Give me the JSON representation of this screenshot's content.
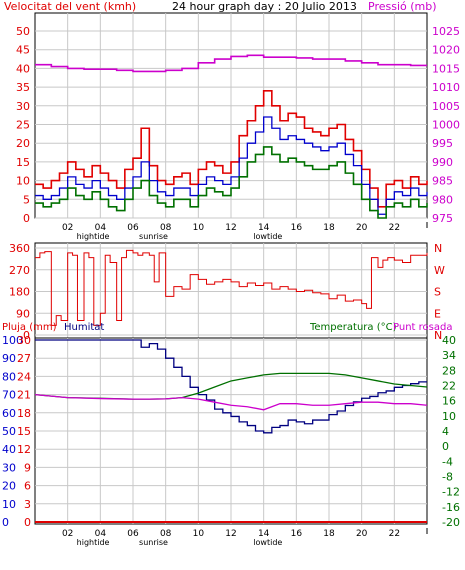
{
  "colors": {
    "red": "#e00000",
    "magenta": "#cc00cc",
    "green": "#007000",
    "blue": "#0000cc",
    "darkblue": "#000080",
    "grid": "#c8c8c8",
    "frame": "#000000"
  },
  "header": {
    "wind_label": "Velocitat del vent (kmh)",
    "title": "24 hour graph day : 20 Julio 2013",
    "pressure_label": "Pressió (mb)"
  },
  "time_axis": {
    "ticks": [
      "02",
      "04",
      "06",
      "08",
      "10",
      "12",
      "14",
      "16",
      "18",
      "20",
      "22"
    ],
    "annotations": [
      "hightide",
      "sunrise",
      "lowtide"
    ]
  },
  "panel_bottom": {
    "rain_label": "Pluja (mm)",
    "humidity_label": "Humitat",
    "temp_label": "Temperatura (°C)",
    "dew_label": "Punt rosada"
  },
  "chart_data": [
    {
      "type": "line",
      "panel": "wind-pressure",
      "x_unit": "hour",
      "x_range": [
        0,
        24
      ],
      "left_axis": {
        "ticks": [
          0,
          5,
          10,
          15,
          20,
          25,
          30,
          35,
          40,
          45,
          50
        ],
        "range": [
          0,
          50
        ]
      },
      "right_axis": {
        "ticks": [
          975,
          980,
          985,
          990,
          995,
          1000,
          1005,
          1010,
          1015,
          1020,
          1025
        ],
        "range": [
          975,
          1025
        ]
      },
      "series": [
        {
          "key": "gust",
          "color": "red",
          "axis": "left",
          "x": [
            0,
            0.5,
            1,
            1.5,
            2,
            2.5,
            3,
            3.5,
            4,
            4.5,
            5,
            5.5,
            6,
            6.5,
            7,
            7.5,
            8,
            8.5,
            9,
            9.5,
            10,
            10.5,
            11,
            11.5,
            12,
            12.5,
            13,
            13.5,
            14,
            14.5,
            15,
            15.5,
            16,
            16.5,
            17,
            17.5,
            18,
            18.5,
            19,
            19.5,
            20,
            20.5,
            21,
            21.5,
            22,
            22.5,
            23,
            23.5,
            24
          ],
          "values": [
            9,
            8,
            10,
            12,
            15,
            13,
            11,
            14,
            12,
            10,
            8,
            13,
            16,
            24,
            14,
            10,
            9,
            11,
            12,
            9,
            13,
            15,
            14,
            12,
            15,
            22,
            26,
            30,
            34,
            30,
            26,
            28,
            27,
            24,
            23,
            22,
            24,
            25,
            21,
            18,
            13,
            8,
            3,
            9,
            10,
            8,
            11,
            9,
            10
          ]
        },
        {
          "key": "avg",
          "color": "blue",
          "axis": "left",
          "x": [
            0,
            0.5,
            1,
            1.5,
            2,
            2.5,
            3,
            3.5,
            4,
            4.5,
            5,
            5.5,
            6,
            6.5,
            7,
            7.5,
            8,
            8.5,
            9,
            9.5,
            10,
            10.5,
            11,
            11.5,
            12,
            12.5,
            13,
            13.5,
            14,
            14.5,
            15,
            15.5,
            16,
            16.5,
            17,
            17.5,
            18,
            18.5,
            19,
            19.5,
            20,
            20.5,
            21,
            21.5,
            22,
            22.5,
            23,
            23.5,
            24
          ],
          "values": [
            6,
            5,
            6,
            8,
            11,
            9,
            8,
            10,
            8,
            6,
            5,
            8,
            11,
            15,
            10,
            7,
            6,
            8,
            8,
            6,
            9,
            11,
            10,
            9,
            11,
            16,
            20,
            23,
            27,
            24,
            21,
            22,
            21,
            20,
            19,
            18,
            19,
            20,
            17,
            14,
            9,
            5,
            1,
            5,
            7,
            6,
            8,
            6,
            7
          ]
        },
        {
          "key": "wind",
          "color": "green",
          "axis": "left",
          "x": [
            0,
            0.5,
            1,
            1.5,
            2,
            2.5,
            3,
            3.5,
            4,
            4.5,
            5,
            5.5,
            6,
            6.5,
            7,
            7.5,
            8,
            8.5,
            9,
            9.5,
            10,
            10.5,
            11,
            11.5,
            12,
            12.5,
            13,
            13.5,
            14,
            14.5,
            15,
            15.5,
            16,
            16.5,
            17,
            17.5,
            18,
            18.5,
            19,
            19.5,
            20,
            20.5,
            21,
            21.5,
            22,
            22.5,
            23,
            23.5,
            24
          ],
          "values": [
            4,
            3,
            4,
            5,
            8,
            6,
            5,
            7,
            5,
            3,
            2,
            5,
            8,
            10,
            6,
            4,
            3,
            5,
            5,
            3,
            6,
            8,
            7,
            6,
            8,
            11,
            15,
            17,
            19,
            17,
            15,
            16,
            15,
            14,
            13,
            13,
            14,
            15,
            12,
            9,
            5,
            2,
            0,
            3,
            4,
            3,
            5,
            3,
            4
          ]
        },
        {
          "key": "pressure",
          "color": "magenta",
          "axis": "right",
          "x": [
            0,
            1,
            2,
            3,
            4,
            5,
            6,
            7,
            8,
            9,
            10,
            11,
            12,
            13,
            14,
            15,
            16,
            17,
            18,
            19,
            20,
            21,
            22,
            23,
            24
          ],
          "values": [
            1016,
            1015.5,
            1015,
            1014.8,
            1014.8,
            1014.5,
            1014.2,
            1014.2,
            1014.5,
            1015,
            1016.5,
            1017.5,
            1018.2,
            1018.5,
            1018,
            1018,
            1017.8,
            1017.5,
            1017.5,
            1017,
            1016.5,
            1016,
            1016,
            1015.8,
            1015.8
          ]
        }
      ]
    },
    {
      "type": "line",
      "panel": "wind-direction",
      "x_unit": "hour",
      "x_range": [
        0,
        24
      ],
      "left_axis": {
        "ticks": [
          0,
          90,
          180,
          270,
          360
        ],
        "range": [
          0,
          360
        ]
      },
      "right_axis": {
        "labels": [
          "N",
          "W",
          "S",
          "E",
          "N"
        ]
      },
      "series": [
        {
          "key": "direction",
          "color": "red",
          "x": [
            0,
            0.3,
            0.6,
            1,
            1.3,
            1.6,
            2,
            2.3,
            2.6,
            3,
            3.3,
            3.6,
            4,
            4.3,
            4.6,
            5,
            5.3,
            5.6,
            6,
            6.3,
            6.6,
            7,
            7.3,
            7.6,
            8,
            8.5,
            9,
            9.5,
            10,
            10.5,
            11,
            11.5,
            12,
            12.5,
            13,
            13.5,
            14,
            14.5,
            15,
            15.5,
            16,
            16.5,
            17,
            17.5,
            18,
            18.5,
            19,
            19.5,
            20,
            20.3,
            20.6,
            21,
            21.3,
            21.6,
            22,
            22.5,
            23,
            23.5,
            24
          ],
          "values": [
            320,
            340,
            345,
            40,
            80,
            60,
            340,
            330,
            60,
            340,
            320,
            40,
            90,
            330,
            300,
            60,
            320,
            350,
            340,
            330,
            340,
            330,
            220,
            340,
            160,
            200,
            190,
            250,
            230,
            210,
            220,
            230,
            220,
            200,
            215,
            205,
            215,
            190,
            200,
            190,
            180,
            185,
            175,
            170,
            150,
            165,
            140,
            145,
            130,
            110,
            320,
            280,
            310,
            320,
            310,
            300,
            330,
            330,
            340
          ]
        }
      ]
    },
    {
      "type": "line",
      "panel": "temp-humidity",
      "x_unit": "hour",
      "x_range": [
        0,
        24
      ],
      "left_axis": {
        "humidity_ticks": [
          0,
          10,
          20,
          30,
          40,
          50,
          60,
          70,
          80,
          90,
          100
        ],
        "rain_ticks": [
          0,
          3,
          6,
          9,
          12,
          15,
          18,
          21,
          24,
          27,
          30
        ]
      },
      "right_axis": {
        "ticks": [
          -20,
          -16,
          -12,
          -8,
          -4,
          0,
          4,
          10,
          16,
          22,
          28,
          34,
          40
        ],
        "range": [
          -20,
          40
        ]
      },
      "series": [
        {
          "key": "humidity",
          "color": "darkblue",
          "axis": "left",
          "x": [
            0,
            1,
            2,
            3,
            4,
            5,
            6,
            6.5,
            7,
            7.5,
            8,
            8.5,
            9,
            9.5,
            10,
            10.5,
            11,
            11.5,
            12,
            12.5,
            13,
            13.5,
            14,
            14.5,
            15,
            15.5,
            16,
            16.5,
            17,
            17.5,
            18,
            18.5,
            19,
            19.5,
            20,
            20.5,
            21,
            21.5,
            22,
            22.5,
            23,
            23.5,
            24
          ],
          "values": [
            100,
            100,
            100,
            100,
            100,
            100,
            100,
            96,
            98,
            95,
            90,
            85,
            80,
            74,
            70,
            67,
            62,
            60,
            58,
            55,
            53,
            50,
            49,
            52,
            53,
            56,
            55,
            54,
            56,
            56,
            59,
            61,
            64,
            66,
            68,
            69,
            71,
            72,
            74,
            75,
            76,
            77,
            77
          ]
        },
        {
          "key": "temperature",
          "color": "green",
          "axis": "right",
          "x": [
            0,
            2,
            4,
            6,
            7,
            8,
            9,
            10,
            11,
            12,
            13,
            14,
            15,
            16,
            17,
            18,
            19,
            20,
            21,
            22,
            23,
            24
          ],
          "values": [
            22,
            21,
            20.8,
            20.5,
            20.5,
            20.6,
            21,
            22.5,
            24.5,
            26.5,
            27.5,
            28.5,
            29,
            29,
            29,
            29,
            28.5,
            27.5,
            26.5,
            25.5,
            25,
            24.5
          ]
        },
        {
          "key": "dewpoint",
          "color": "magenta",
          "axis": "right",
          "x": [
            0,
            2,
            4,
            6,
            7,
            8,
            9,
            10,
            11,
            12,
            13,
            14,
            15,
            16,
            17,
            18,
            19,
            20,
            21,
            22,
            23,
            24
          ],
          "values": [
            22,
            21,
            20.7,
            20.5,
            20.5,
            20.6,
            21,
            20.5,
            19.5,
            18.5,
            18,
            17,
            19,
            19,
            18.5,
            18.5,
            19,
            19.5,
            19.5,
            19,
            19,
            18.5
          ]
        },
        {
          "key": "rain",
          "color": "red",
          "axis": "left-rain",
          "x": [
            0,
            24
          ],
          "values": [
            0,
            0
          ]
        }
      ]
    }
  ]
}
